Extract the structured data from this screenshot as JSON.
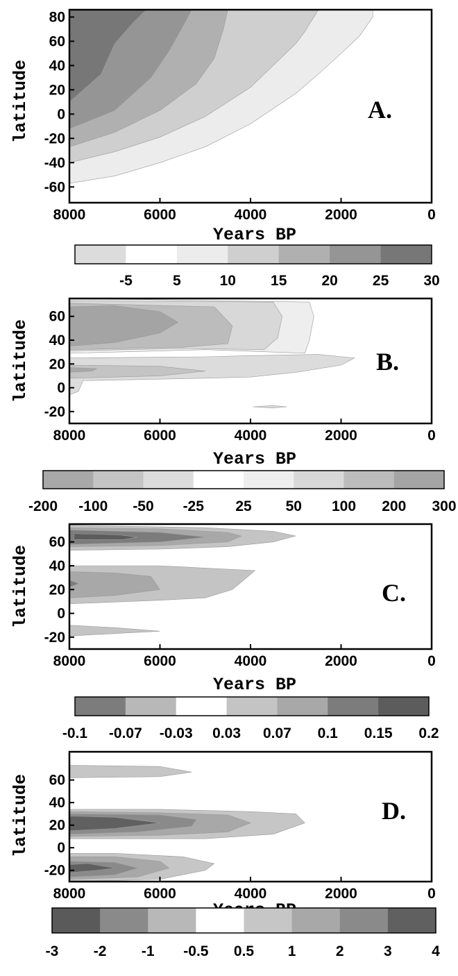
{
  "chart_data": [
    {
      "type": "heatmap",
      "panel_label": "A.",
      "xlabel": "Years BP",
      "ylabel": "latitude",
      "xlim": [
        8000,
        0
      ],
      "ylim": [
        -73,
        86
      ],
      "x_ticks": [
        8000,
        6000,
        4000,
        2000,
        0
      ],
      "y_ticks": [
        80,
        60,
        40,
        20,
        0,
        -20,
        -40,
        -60
      ],
      "colorbar": {
        "ticks": [
          "-5",
          "5",
          "10",
          "15",
          "20",
          "25",
          "30"
        ],
        "colors": [
          "#dcdcdc",
          "#ffffff",
          "#ececec",
          "#cfcfcf",
          "#b0b0b0",
          "#959595",
          "#777777"
        ]
      },
      "bands": [
        {
          "color": "#ececec",
          "boundary": [
            [
              8000,
              -57
            ],
            [
              7000,
              -51
            ],
            [
              6000,
              -40
            ],
            [
              5000,
              -27
            ],
            [
              4000,
              -8
            ],
            [
              3000,
              17
            ],
            [
              2500,
              33
            ],
            [
              2000,
              50
            ],
            [
              1600,
              64
            ],
            [
              1300,
              80
            ],
            [
              1300,
              86
            ]
          ]
        },
        {
          "color": "#cfcfcf",
          "boundary": [
            [
              8000,
              -40
            ],
            [
              7000,
              -31
            ],
            [
              6000,
              -19
            ],
            [
              5000,
              -2
            ],
            [
              4000,
              22
            ],
            [
              3500,
              40
            ],
            [
              3000,
              58
            ],
            [
              2800,
              68
            ],
            [
              2500,
              86
            ]
          ]
        },
        {
          "color": "#b0b0b0",
          "boundary": [
            [
              8000,
              -27
            ],
            [
              7000,
              -15
            ],
            [
              6000,
              3
            ],
            [
              5200,
              25
            ],
            [
              4800,
              46
            ],
            [
              4600,
              70
            ],
            [
              4500,
              86
            ]
          ]
        },
        {
          "color": "#959595",
          "boundary": [
            [
              8000,
              -12
            ],
            [
              7000,
              3
            ],
            [
              6200,
              30
            ],
            [
              5800,
              52
            ],
            [
              5500,
              72
            ],
            [
              5300,
              86
            ]
          ]
        },
        {
          "color": "#777777",
          "boundary": [
            [
              8000,
              10
            ],
            [
              7300,
              33
            ],
            [
              7000,
              58
            ],
            [
              6600,
              75
            ],
            [
              6300,
              86
            ]
          ]
        }
      ]
    },
    {
      "type": "heatmap",
      "panel_label": "B.",
      "xlabel": "Years BP",
      "ylabel": "latitude",
      "xlim": [
        8000,
        0
      ],
      "ylim": [
        -30,
        75
      ],
      "x_ticks": [
        8000,
        6000,
        4000,
        2000,
        0
      ],
      "y_ticks": [
        60,
        40,
        20,
        0,
        -20
      ],
      "colorbar": {
        "ticks": [
          "-200",
          "-100",
          "-50",
          "-25",
          "25",
          "50",
          "100",
          "200",
          "300"
        ],
        "colors": [
          "#a8a8a8",
          "#c4c4c4",
          "#dcdcdc",
          "#ffffff",
          "#eeeeee",
          "#d8d8d8",
          "#bcbcbc",
          "#a4a4a4"
        ]
      },
      "blobs": [
        {
          "color": "#eeeeee",
          "points": [
            [
              8000,
              29
            ],
            [
              5000,
              32
            ],
            [
              3500,
              30
            ],
            [
              2800,
              29
            ],
            [
              2700,
              40
            ],
            [
              2600,
              60
            ],
            [
              2700,
              72
            ],
            [
              8000,
              75
            ]
          ]
        },
        {
          "color": "#d8d8d8",
          "points": [
            [
              8000,
              31
            ],
            [
              5500,
              33
            ],
            [
              3700,
              32
            ],
            [
              3400,
              42
            ],
            [
              3300,
              60
            ],
            [
              3500,
              72
            ],
            [
              8000,
              73
            ]
          ]
        },
        {
          "color": "#bcbcbc",
          "points": [
            [
              8000,
              32
            ],
            [
              5500,
              34
            ],
            [
              4500,
              37
            ],
            [
              4400,
              52
            ],
            [
              4800,
              68
            ],
            [
              8000,
              71
            ]
          ]
        },
        {
          "color": "#a4a4a4",
          "points": [
            [
              8000,
              35
            ],
            [
              7000,
              38
            ],
            [
              6000,
              46
            ],
            [
              5600,
              55
            ],
            [
              6000,
              64
            ],
            [
              7000,
              69
            ],
            [
              8000,
              68
            ]
          ]
        },
        {
          "color": "#dcdcdc",
          "points": [
            [
              8000,
              -6
            ],
            [
              7800,
              -3
            ],
            [
              7700,
              6
            ],
            [
              5000,
              8
            ],
            [
              4000,
              9
            ],
            [
              3000,
              13
            ],
            [
              2000,
              19
            ],
            [
              1700,
              25
            ],
            [
              2500,
              28
            ],
            [
              4000,
              27
            ],
            [
              5000,
              26
            ],
            [
              8000,
              25
            ]
          ]
        },
        {
          "color": "#c4c4c4",
          "points": [
            [
              8000,
              8
            ],
            [
              6000,
              10
            ],
            [
              5000,
              14
            ],
            [
              6000,
              18
            ],
            [
              8000,
              19
            ]
          ]
        },
        {
          "color": "#a8a8a8",
          "points": [
            [
              8000,
              13
            ],
            [
              7500,
              14
            ],
            [
              7400,
              16
            ],
            [
              8000,
              17
            ]
          ]
        },
        {
          "color": "#dcdcdc",
          "points": [
            [
              3950,
              -16
            ],
            [
              3500,
              -15
            ],
            [
              3200,
              -16
            ],
            [
              3500,
              -17
            ]
          ]
        }
      ]
    },
    {
      "type": "heatmap",
      "panel_label": "C.",
      "xlabel": "Years BP",
      "ylabel": "latitude",
      "xlim": [
        8000,
        0
      ],
      "ylim": [
        -30,
        75
      ],
      "x_ticks": [
        8000,
        6000,
        4000,
        2000,
        0
      ],
      "y_ticks": [
        60,
        40,
        20,
        0,
        -20
      ],
      "colorbar": {
        "ticks": [
          "-0.1",
          "-0.07",
          "-0.03",
          "0.03",
          "0.07",
          "0.1",
          "0.15",
          "0.2"
        ],
        "colors": [
          "#7c7c7c",
          "#b8b8b8",
          "#ffffff",
          "#c4c4c4",
          "#a8a8a8",
          "#7c7c7c",
          "#5c5c5c"
        ]
      },
      "blobs": [
        {
          "color": "#c4c4c4",
          "points": [
            [
              8000,
              53
            ],
            [
              6000,
              54
            ],
            [
              4500,
              56
            ],
            [
              3500,
              60
            ],
            [
              3000,
              65
            ],
            [
              3500,
              69
            ],
            [
              5000,
              72
            ],
            [
              8000,
              74
            ]
          ]
        },
        {
          "color": "#a8a8a8",
          "points": [
            [
              8000,
              56
            ],
            [
              6000,
              57
            ],
            [
              4500,
              60
            ],
            [
              4200,
              65
            ],
            [
              4500,
              68
            ],
            [
              6000,
              71
            ],
            [
              8000,
              72
            ]
          ]
        },
        {
          "color": "#7c7c7c",
          "points": [
            [
              8000,
              58
            ],
            [
              6000,
              60
            ],
            [
              5000,
              64
            ],
            [
              6000,
              68
            ],
            [
              8000,
              70
            ]
          ]
        },
        {
          "color": "#5c5c5c",
          "points": [
            [
              7900,
              62
            ],
            [
              6800,
              62
            ],
            [
              6500,
              64
            ],
            [
              6900,
              66
            ],
            [
              7900,
              67
            ]
          ]
        },
        {
          "color": "#c4c4c4",
          "points": [
            [
              8000,
              8
            ],
            [
              6000,
              11
            ],
            [
              5000,
              13
            ],
            [
              4400,
              20
            ],
            [
              3900,
              36
            ],
            [
              5000,
              38
            ],
            [
              6000,
              40
            ],
            [
              8000,
              40
            ]
          ]
        },
        {
          "color": "#a8a8a8",
          "points": [
            [
              8000,
              13
            ],
            [
              7000,
              15
            ],
            [
              6000,
              20
            ],
            [
              6200,
              31
            ],
            [
              7000,
              34
            ],
            [
              8000,
              35
            ]
          ]
        },
        {
          "color": "#7c7c7c",
          "points": [
            [
              8000,
              22
            ],
            [
              7800,
              25
            ],
            [
              8000,
              28
            ]
          ]
        },
        {
          "color": "#c4c4c4",
          "points": [
            [
              8000,
              -19
            ],
            [
              7000,
              -17
            ],
            [
              6000,
              -15
            ],
            [
              7000,
              -12
            ],
            [
              8000,
              -10
            ]
          ]
        }
      ]
    },
    {
      "type": "heatmap",
      "panel_label": "D.",
      "xlabel": "Years BP",
      "ylabel": "latitude",
      "xlim": [
        8000,
        0
      ],
      "ylim": [
        -30,
        85
      ],
      "x_ticks": [
        8000,
        6000,
        4000,
        2000,
        0
      ],
      "y_ticks": [
        60,
        40,
        20,
        0,
        -20
      ],
      "colorbar": {
        "ticks": [
          "-3",
          "-2",
          "-1",
          "-0.5",
          "0.5",
          "1",
          "2",
          "3",
          "4"
        ],
        "colors": [
          "#5a5a5a",
          "#8a8a8a",
          "#b8b8b8",
          "#ffffff",
          "#c6c6c6",
          "#a8a8a8",
          "#8a8a8a",
          "#606060"
        ]
      },
      "blobs": [
        {
          "color": "#c6c6c6",
          "points": [
            [
              8000,
              62
            ],
            [
              6000,
              63
            ],
            [
              5300,
              67
            ],
            [
              6000,
              72
            ],
            [
              8000,
              73
            ]
          ]
        },
        {
          "color": "#c6c6c6",
          "points": [
            [
              8000,
              8
            ],
            [
              5000,
              8
            ],
            [
              3500,
              12
            ],
            [
              2800,
              22
            ],
            [
              3000,
              30
            ],
            [
              4000,
              32
            ],
            [
              6000,
              34
            ],
            [
              8000,
              34
            ]
          ]
        },
        {
          "color": "#a8a8a8",
          "points": [
            [
              8000,
              10
            ],
            [
              6000,
              11
            ],
            [
              4500,
              14
            ],
            [
              4000,
              22
            ],
            [
              4500,
              29
            ],
            [
              6000,
              31
            ],
            [
              8000,
              32
            ]
          ]
        },
        {
          "color": "#8a8a8a",
          "points": [
            [
              8000,
              12
            ],
            [
              6500,
              14
            ],
            [
              5300,
              19
            ],
            [
              5200,
              25
            ],
            [
              6000,
              29
            ],
            [
              8000,
              30
            ]
          ]
        },
        {
          "color": "#606060",
          "points": [
            [
              8000,
              15
            ],
            [
              7000,
              17
            ],
            [
              6000,
              22
            ],
            [
              7000,
              27
            ],
            [
              8000,
              28
            ]
          ]
        },
        {
          "color": "#c6c6c6",
          "points": [
            [
              8000,
              -30
            ],
            [
              6000,
              -28
            ],
            [
              5000,
              -20
            ],
            [
              4800,
              -14
            ],
            [
              5500,
              -8
            ],
            [
              7000,
              -5
            ],
            [
              8000,
              -5
            ]
          ]
        },
        {
          "color": "#a8a8a8",
          "points": [
            [
              8000,
              -28
            ],
            [
              6500,
              -26
            ],
            [
              5800,
              -18
            ],
            [
              6000,
              -12
            ],
            [
              7000,
              -8
            ],
            [
              8000,
              -8
            ]
          ]
        },
        {
          "color": "#8a8a8a",
          "points": [
            [
              8000,
              -26
            ],
            [
              7000,
              -24
            ],
            [
              6500,
              -18
            ],
            [
              7000,
              -13
            ],
            [
              8000,
              -12
            ]
          ]
        },
        {
          "color": "#606060",
          "points": [
            [
              8000,
              -22
            ],
            [
              7400,
              -20
            ],
            [
              7000,
              -18
            ],
            [
              7600,
              -14
            ],
            [
              8000,
              -15
            ]
          ]
        }
      ]
    }
  ]
}
